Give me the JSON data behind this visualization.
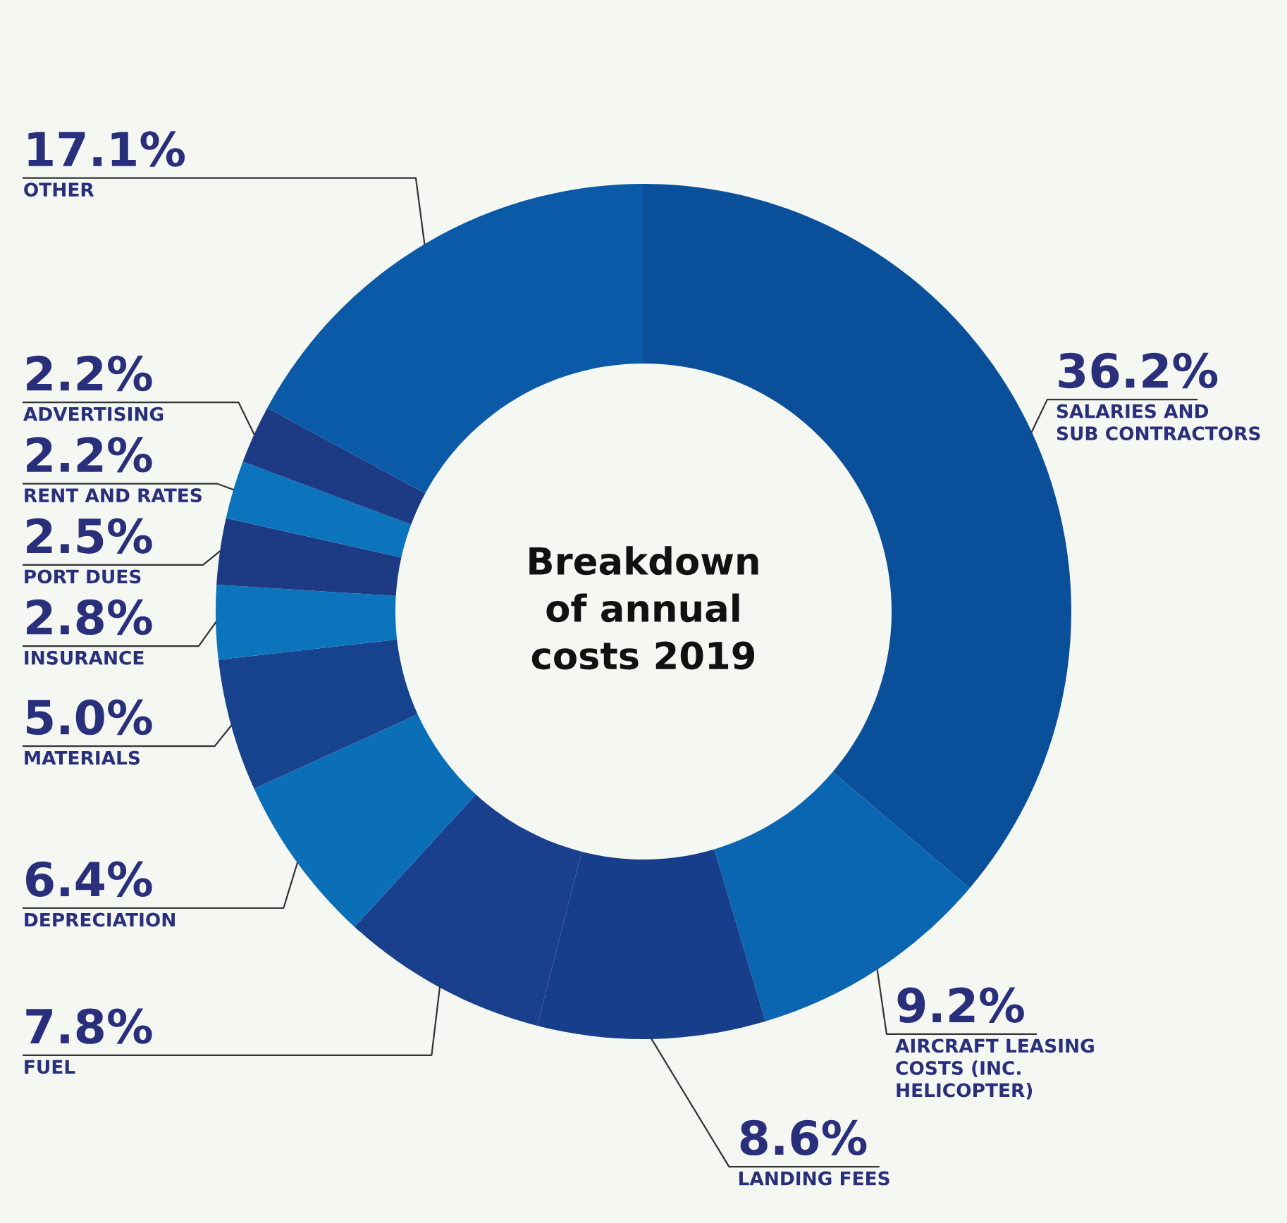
{
  "chart_data": {
    "type": "donut",
    "title": "Breakdown\nof annual\ncosts 2019",
    "categories": [
      "SALARIES AND\nSUB CONTRACTORS",
      "AIRCRAFT LEASING\nCOSTS (INC.\nHELICOPTER)",
      "LANDING FEES",
      "FUEL",
      "DEPRECIATION",
      "MATERIALS",
      "INSURANCE",
      "PORT DUES",
      "RENT AND RATES",
      "ADVERTISING",
      "OTHER"
    ],
    "values": [
      36.2,
      9.2,
      8.6,
      7.8,
      6.4,
      5.0,
      2.8,
      2.5,
      2.2,
      2.2,
      17.1
    ],
    "value_labels": [
      "36.2%",
      "9.2%",
      "8.6%",
      "7.8%",
      "6.4%",
      "5.0%",
      "2.8%",
      "2.5%",
      "2.2%",
      "2.2%",
      "17.1%"
    ],
    "colors": [
      "#0a4f9a",
      "#0a66b0",
      "#163e8a",
      "#1a3f8c",
      "#0b6fb8",
      "#17428e",
      "#0b74bc",
      "#1d3a84",
      "#0b74bc",
      "#1d3a84",
      "#0a5aa8"
    ],
    "legend": false
  }
}
